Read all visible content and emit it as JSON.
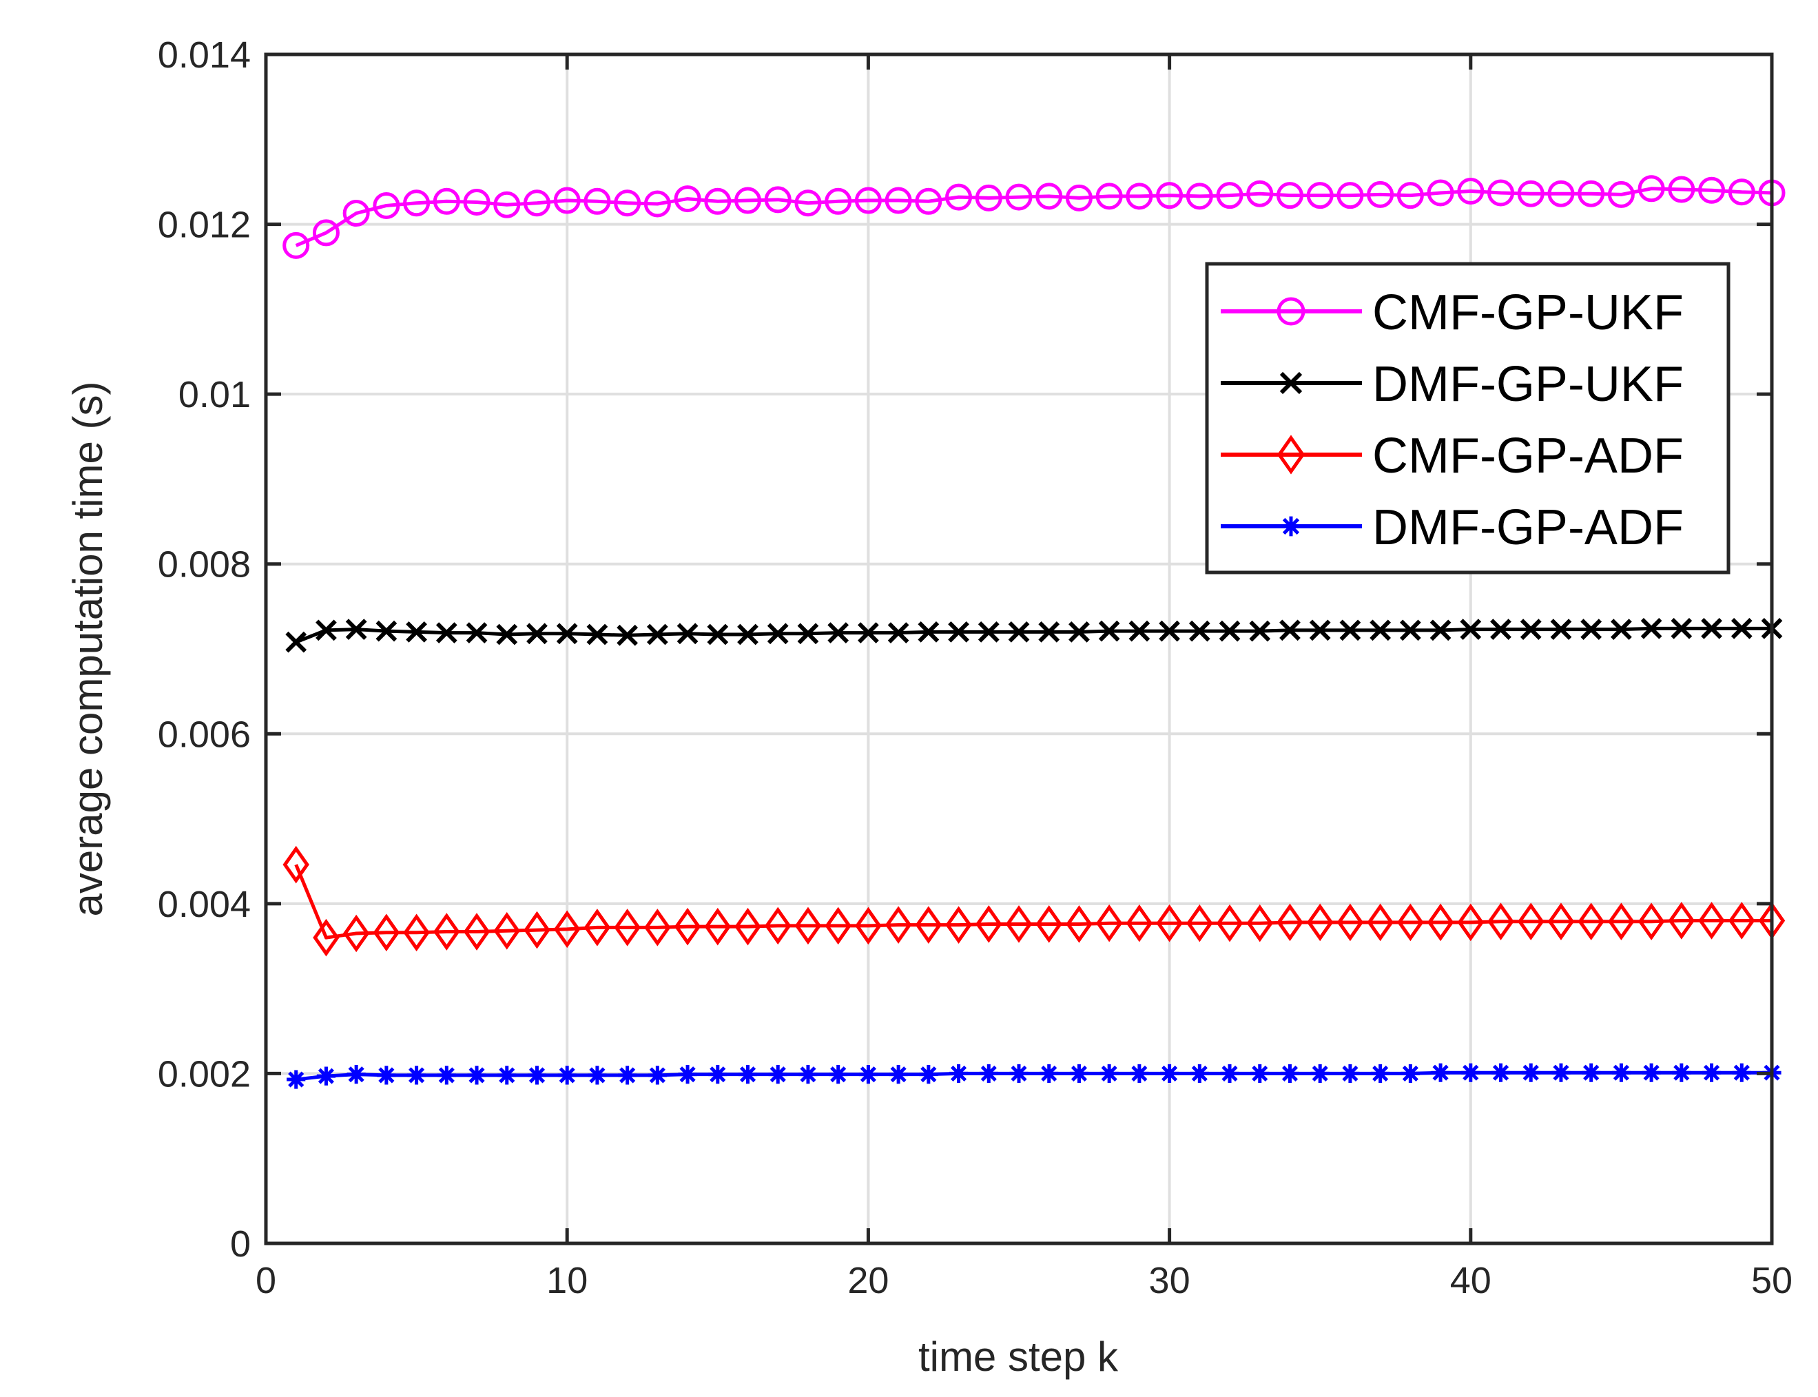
{
  "chart_data": {
    "type": "line",
    "title": "",
    "xlabel": "time step k",
    "ylabel": "average computation time (s)",
    "xlim": [
      0,
      50
    ],
    "ylim": [
      0,
      0.014
    ],
    "xticks": [
      0,
      10,
      20,
      30,
      40,
      50
    ],
    "yticks": [
      0,
      0.002,
      0.004,
      0.006,
      0.008,
      0.01,
      0.012,
      0.014
    ],
    "xtick_labels": [
      "0",
      "10",
      "20",
      "30",
      "40",
      "50"
    ],
    "ytick_labels": [
      "0",
      "0.002",
      "0.004",
      "0.006",
      "0.008",
      "0.01",
      "0.012",
      "0.014"
    ],
    "grid": true,
    "legend_position": "top-right",
    "x": [
      1,
      2,
      3,
      4,
      5,
      6,
      7,
      8,
      9,
      10,
      11,
      12,
      13,
      14,
      15,
      16,
      17,
      18,
      19,
      20,
      21,
      22,
      23,
      24,
      25,
      26,
      27,
      28,
      29,
      30,
      31,
      32,
      33,
      34,
      35,
      36,
      37,
      38,
      39,
      40,
      41,
      42,
      43,
      44,
      45,
      46,
      47,
      48,
      49,
      50
    ],
    "series": [
      {
        "name": "CMF-GP-UKF",
        "color": "#ff00ff",
        "marker": "circle",
        "values": [
          0.01175,
          0.0119,
          0.01213,
          0.01222,
          0.01225,
          0.01227,
          0.01226,
          0.01223,
          0.01225,
          0.01228,
          0.01227,
          0.01225,
          0.01224,
          0.0123,
          0.01227,
          0.01228,
          0.01229,
          0.01225,
          0.01227,
          0.01228,
          0.01228,
          0.01227,
          0.01232,
          0.01231,
          0.01232,
          0.01233,
          0.01231,
          0.01233,
          0.01233,
          0.01234,
          0.01233,
          0.01234,
          0.01236,
          0.01234,
          0.01234,
          0.01234,
          0.01235,
          0.01234,
          0.01237,
          0.01239,
          0.01237,
          0.01236,
          0.01236,
          0.01236,
          0.01235,
          0.01242,
          0.01241,
          0.0124,
          0.01238,
          0.01237
        ]
      },
      {
        "name": "DMF-GP-UKF",
        "color": "#000000",
        "marker": "x",
        "values": [
          0.00708,
          0.00722,
          0.00723,
          0.00721,
          0.0072,
          0.00719,
          0.00719,
          0.00717,
          0.00718,
          0.00718,
          0.00717,
          0.00716,
          0.00717,
          0.00718,
          0.00717,
          0.00717,
          0.00718,
          0.00718,
          0.00719,
          0.00719,
          0.00719,
          0.0072,
          0.0072,
          0.0072,
          0.0072,
          0.0072,
          0.0072,
          0.00721,
          0.00721,
          0.00721,
          0.00721,
          0.00721,
          0.00721,
          0.00722,
          0.00722,
          0.00722,
          0.00722,
          0.00722,
          0.00722,
          0.00723,
          0.00723,
          0.00723,
          0.00723,
          0.00723,
          0.00723,
          0.00724,
          0.00724,
          0.00724,
          0.00724,
          0.00724
        ]
      },
      {
        "name": "CMF-GP-ADF",
        "color": "#ff0000",
        "marker": "diamond",
        "values": [
          0.00446,
          0.0036,
          0.00365,
          0.00366,
          0.00366,
          0.00367,
          0.00367,
          0.00368,
          0.00369,
          0.0037,
          0.00372,
          0.00372,
          0.00372,
          0.00373,
          0.00373,
          0.00373,
          0.00374,
          0.00374,
          0.00374,
          0.00374,
          0.00375,
          0.00375,
          0.00375,
          0.00376,
          0.00376,
          0.00376,
          0.00376,
          0.00377,
          0.00377,
          0.00377,
          0.00377,
          0.00377,
          0.00377,
          0.00378,
          0.00378,
          0.00378,
          0.00378,
          0.00378,
          0.00378,
          0.00378,
          0.00379,
          0.00379,
          0.00379,
          0.00379,
          0.00379,
          0.00379,
          0.0038,
          0.0038,
          0.0038,
          0.0038
        ]
      },
      {
        "name": "DMF-GP-ADF",
        "color": "#0000ff",
        "marker": "asterisk",
        "values": [
          0.00193,
          0.00197,
          0.00199,
          0.00198,
          0.00198,
          0.00198,
          0.00198,
          0.00198,
          0.00198,
          0.00198,
          0.00198,
          0.00198,
          0.00198,
          0.00199,
          0.00199,
          0.00199,
          0.00199,
          0.00199,
          0.00199,
          0.00199,
          0.00199,
          0.00199,
          0.002,
          0.002,
          0.002,
          0.002,
          0.002,
          0.002,
          0.002,
          0.002,
          0.002,
          0.002,
          0.002,
          0.002,
          0.002,
          0.002,
          0.002,
          0.002,
          0.00201,
          0.00201,
          0.00201,
          0.00201,
          0.00201,
          0.00201,
          0.00201,
          0.00201,
          0.00201,
          0.00201,
          0.00201,
          0.00201
        ]
      }
    ]
  }
}
